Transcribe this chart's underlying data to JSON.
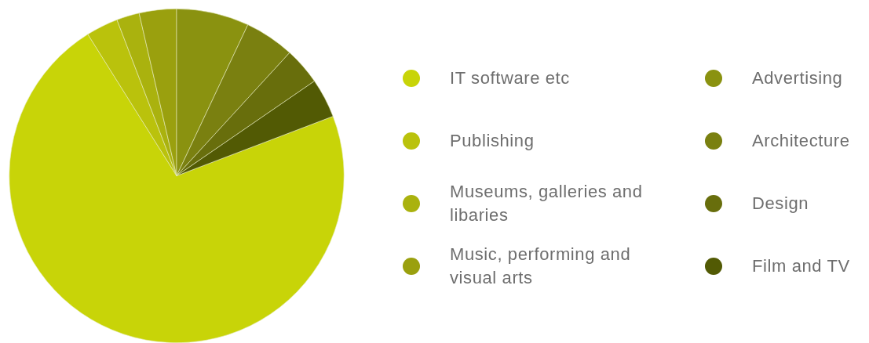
{
  "chart_data": {
    "type": "pie",
    "categories": [
      "IT software etc",
      "Publishing",
      "Museums, galleries and libaries",
      "Music, performing and visual arts",
      "Advertising",
      "Architecture",
      "Design",
      "Film and TV"
    ],
    "values": [
      71.9,
      3.1,
      2.2,
      3.6,
      7.0,
      4.8,
      3.6,
      3.8
    ],
    "colors": [
      "#c8d408",
      "#bac20c",
      "#aab20e",
      "#9aa00e",
      "#8a9210",
      "#7a8010",
      "#686e0c",
      "#525a04"
    ],
    "legend": "right"
  }
}
